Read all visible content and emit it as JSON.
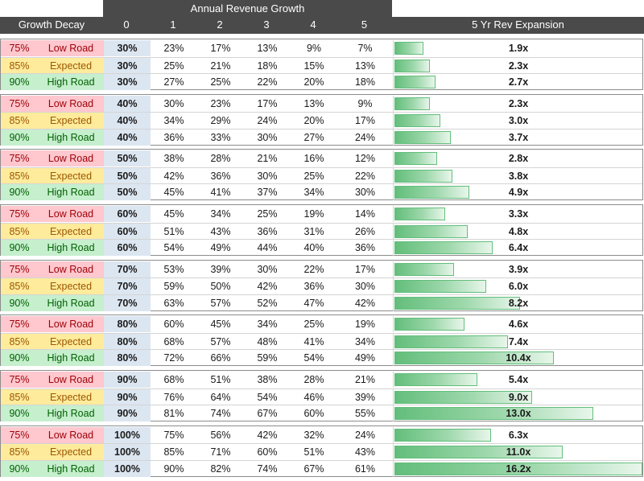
{
  "header": {
    "group_label": "Growth Decay",
    "annual_title": "Annual Revenue Growth",
    "years": [
      "0",
      "1",
      "2",
      "3",
      "4",
      "5"
    ],
    "expansion_title": "5 Yr Rev Expansion"
  },
  "scenario_labels": {
    "low": {
      "pct": "75%",
      "name": "Low Road"
    },
    "expected": {
      "pct": "85%",
      "name": "Expected"
    },
    "high": {
      "pct": "90%",
      "name": "High Road"
    }
  },
  "groups": [
    {
      "rows": [
        {
          "type": "low",
          "growth": [
            "30%",
            "23%",
            "17%",
            "13%",
            "9%",
            "7%"
          ],
          "expansion": "1.9x",
          "multiple": 1.9
        },
        {
          "type": "expected",
          "growth": [
            "30%",
            "25%",
            "21%",
            "18%",
            "15%",
            "13%"
          ],
          "expansion": "2.3x",
          "multiple": 2.3
        },
        {
          "type": "high",
          "growth": [
            "30%",
            "27%",
            "25%",
            "22%",
            "20%",
            "18%"
          ],
          "expansion": "2.7x",
          "multiple": 2.7
        }
      ]
    },
    {
      "rows": [
        {
          "type": "low",
          "growth": [
            "40%",
            "30%",
            "23%",
            "17%",
            "13%",
            "9%"
          ],
          "expansion": "2.3x",
          "multiple": 2.3
        },
        {
          "type": "expected",
          "growth": [
            "40%",
            "34%",
            "29%",
            "24%",
            "20%",
            "17%"
          ],
          "expansion": "3.0x",
          "multiple": 3.0
        },
        {
          "type": "high",
          "growth": [
            "40%",
            "36%",
            "33%",
            "30%",
            "27%",
            "24%"
          ],
          "expansion": "3.7x",
          "multiple": 3.7
        }
      ]
    },
    {
      "rows": [
        {
          "type": "low",
          "growth": [
            "50%",
            "38%",
            "28%",
            "21%",
            "16%",
            "12%"
          ],
          "expansion": "2.8x",
          "multiple": 2.8
        },
        {
          "type": "expected",
          "growth": [
            "50%",
            "42%",
            "36%",
            "30%",
            "25%",
            "22%"
          ],
          "expansion": "3.8x",
          "multiple": 3.8
        },
        {
          "type": "high",
          "growth": [
            "50%",
            "45%",
            "41%",
            "37%",
            "34%",
            "30%"
          ],
          "expansion": "4.9x",
          "multiple": 4.9
        }
      ]
    },
    {
      "rows": [
        {
          "type": "low",
          "growth": [
            "60%",
            "45%",
            "34%",
            "25%",
            "19%",
            "14%"
          ],
          "expansion": "3.3x",
          "multiple": 3.3
        },
        {
          "type": "expected",
          "growth": [
            "60%",
            "51%",
            "43%",
            "36%",
            "31%",
            "26%"
          ],
          "expansion": "4.8x",
          "multiple": 4.8
        },
        {
          "type": "high",
          "growth": [
            "60%",
            "54%",
            "49%",
            "44%",
            "40%",
            "36%"
          ],
          "expansion": "6.4x",
          "multiple": 6.4
        }
      ]
    },
    {
      "rows": [
        {
          "type": "low",
          "growth": [
            "70%",
            "53%",
            "39%",
            "30%",
            "22%",
            "17%"
          ],
          "expansion": "3.9x",
          "multiple": 3.9
        },
        {
          "type": "expected",
          "growth": [
            "70%",
            "59%",
            "50%",
            "42%",
            "36%",
            "30%"
          ],
          "expansion": "6.0x",
          "multiple": 6.0
        },
        {
          "type": "high",
          "growth": [
            "70%",
            "63%",
            "57%",
            "52%",
            "47%",
            "42%"
          ],
          "expansion": "8.2x",
          "multiple": 8.2
        }
      ]
    },
    {
      "rows": [
        {
          "type": "low",
          "growth": [
            "80%",
            "60%",
            "45%",
            "34%",
            "25%",
            "19%"
          ],
          "expansion": "4.6x",
          "multiple": 4.6
        },
        {
          "type": "expected",
          "growth": [
            "80%",
            "68%",
            "57%",
            "48%",
            "41%",
            "34%"
          ],
          "expansion": "7.4x",
          "multiple": 7.4
        },
        {
          "type": "high",
          "growth": [
            "80%",
            "72%",
            "66%",
            "59%",
            "54%",
            "49%"
          ],
          "expansion": "10.4x",
          "multiple": 10.4
        }
      ]
    },
    {
      "rows": [
        {
          "type": "low",
          "growth": [
            "90%",
            "68%",
            "51%",
            "38%",
            "28%",
            "21%"
          ],
          "expansion": "5.4x",
          "multiple": 5.4
        },
        {
          "type": "expected",
          "growth": [
            "90%",
            "76%",
            "64%",
            "54%",
            "46%",
            "39%"
          ],
          "expansion": "9.0x",
          "multiple": 9.0
        },
        {
          "type": "high",
          "growth": [
            "90%",
            "81%",
            "74%",
            "67%",
            "60%",
            "55%"
          ],
          "expansion": "13.0x",
          "multiple": 13.0
        }
      ]
    },
    {
      "rows": [
        {
          "type": "low",
          "growth": [
            "100%",
            "75%",
            "56%",
            "42%",
            "32%",
            "24%"
          ],
          "expansion": "6.3x",
          "multiple": 6.3
        },
        {
          "type": "expected",
          "growth": [
            "100%",
            "85%",
            "71%",
            "60%",
            "51%",
            "43%"
          ],
          "expansion": "11.0x",
          "multiple": 11.0
        },
        {
          "type": "high",
          "growth": [
            "100%",
            "90%",
            "82%",
            "74%",
            "67%",
            "61%"
          ],
          "expansion": "16.2x",
          "multiple": 16.2
        }
      ]
    }
  ],
  "colors": {
    "header_bg": "#4a4a4a",
    "low_bg": "#ffc7ce",
    "low_fg": "#9c0006",
    "expected_bg": "#ffeb9c",
    "expected_fg": "#9c5700",
    "high_bg": "#c6efce",
    "high_fg": "#006100",
    "year0_bg": "#dce6f1",
    "bar_green": "#63be7b"
  }
}
